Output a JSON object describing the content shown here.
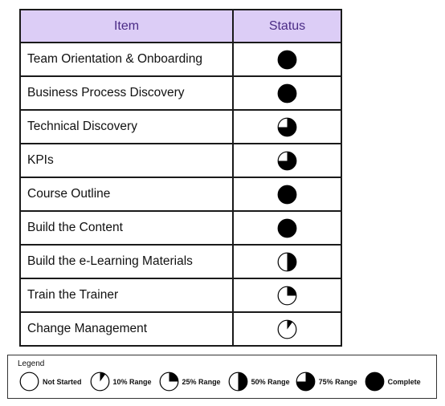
{
  "table": {
    "headers": {
      "item": "Item",
      "status": "Status"
    },
    "rows": [
      {
        "item": "Team Orientation & Onboarding",
        "status": "Complete",
        "fraction": 1.0
      },
      {
        "item": "Business Process Discovery",
        "status": "Complete",
        "fraction": 1.0
      },
      {
        "item": "Technical Discovery",
        "status": "75% Range",
        "fraction": 0.75
      },
      {
        "item": "KPIs",
        "status": "75% Range",
        "fraction": 0.75
      },
      {
        "item": "Course Outline",
        "status": "Complete",
        "fraction": 1.0
      },
      {
        "item": "Build the Content",
        "status": "Complete",
        "fraction": 1.0
      },
      {
        "item": "Build the e-Learning Materials",
        "status": "50% Range",
        "fraction": 0.5
      },
      {
        "item": "Train the Trainer",
        "status": "25% Range",
        "fraction": 0.25
      },
      {
        "item": "Change Management",
        "status": "10% Range",
        "fraction": 0.1
      }
    ]
  },
  "legend": {
    "title": "Legend",
    "entries": [
      {
        "label": "Not Started",
        "fraction": 0
      },
      {
        "label": "10% Range",
        "fraction": 0.1
      },
      {
        "label": "25% Range",
        "fraction": 0.25
      },
      {
        "label": "50% Range",
        "fraction": 0.5
      },
      {
        "label": "75% Range",
        "fraction": 0.75
      },
      {
        "label": "Complete",
        "fraction": 1.0
      }
    ]
  },
  "colors": {
    "header_bg": "#dccdf6",
    "header_text": "#4b2c86",
    "fill": "#000000"
  }
}
